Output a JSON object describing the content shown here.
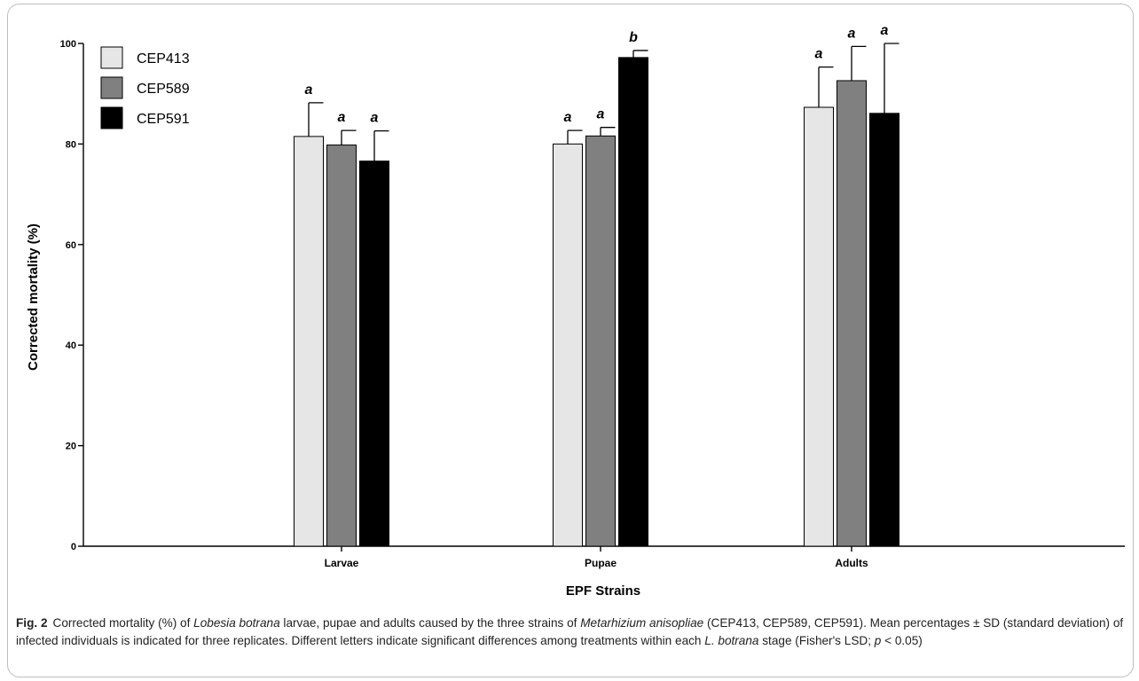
{
  "chart_data": {
    "type": "bar",
    "categories": [
      "Larvae",
      "Pupae",
      "Adults"
    ],
    "xlabel": "EPF Strains",
    "ylabel": "Corrected mortality (%)",
    "ylim": [
      0,
      100
    ],
    "yticks": [
      0,
      20,
      40,
      60,
      80,
      100
    ],
    "grid": false,
    "legend_position": "top-left",
    "series": [
      {
        "name": "CEP413",
        "color": "#e6e6e6",
        "values": [
          81.5,
          80,
          87.3
        ],
        "sd": [
          6.7,
          2.7,
          8.0
        ],
        "letters": [
          "a",
          "a",
          "a"
        ]
      },
      {
        "name": "CEP589",
        "color": "#808080",
        "values": [
          79.8,
          81.6,
          92.6
        ],
        "sd": [
          2.9,
          1.7,
          6.8
        ],
        "letters": [
          "a",
          "a",
          "a"
        ]
      },
      {
        "name": "CEP591",
        "color": "#000000",
        "values": [
          76.6,
          97.2,
          86.1
        ],
        "sd": [
          6.0,
          1.4,
          13.9
        ],
        "letters": [
          "a",
          "b",
          "a"
        ]
      }
    ]
  },
  "caption": {
    "label": "Fig. 2",
    "parts": [
      {
        "text": "Corrected mortality (%) of ",
        "italic": false
      },
      {
        "text": "Lobesia botrana",
        "italic": true
      },
      {
        "text": " larvae, pupae and adults caused by the three strains of ",
        "italic": false
      },
      {
        "text": "Metarhizium anisopliae",
        "italic": true
      },
      {
        "text": " (CEP413, CEP589, CEP591). Mean percentages ± SD (standard deviation) of infected individuals is indicated for three replicates. Different letters indicate significant differences among treatments within each ",
        "italic": false
      },
      {
        "text": "L. botrana",
        "italic": true
      },
      {
        "text": " stage (Fisher's LSD; ",
        "italic": false
      },
      {
        "text": "p",
        "italic": true
      },
      {
        "text": " < 0.05)",
        "italic": false
      }
    ]
  }
}
